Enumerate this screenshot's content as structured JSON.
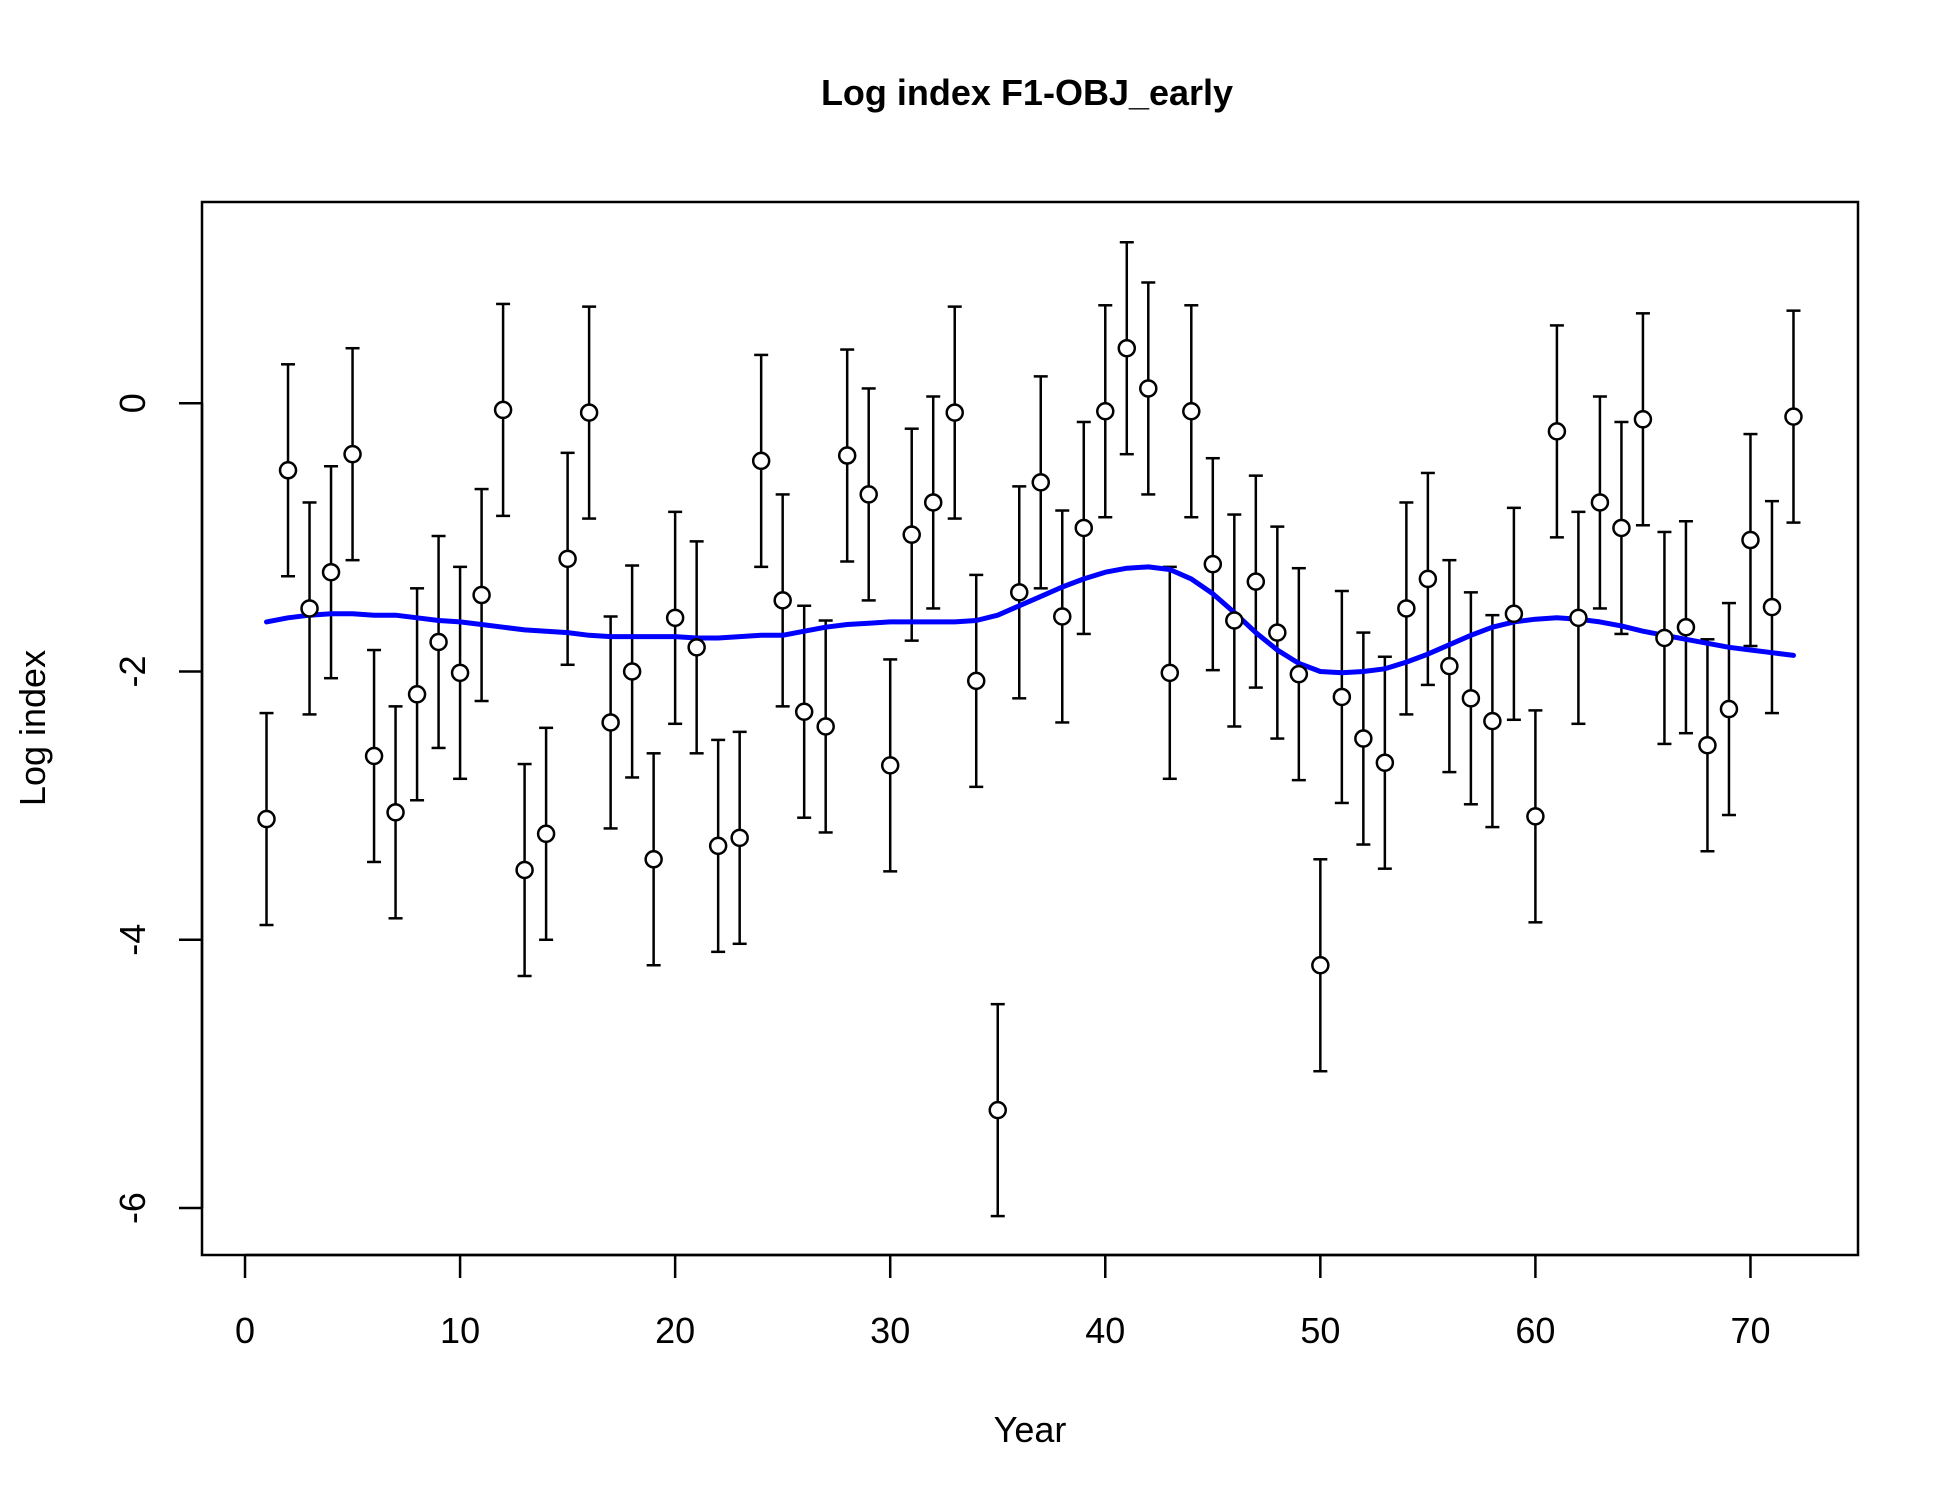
{
  "chart_data": {
    "type": "scatter",
    "title": "Log index F1-OBJ_early",
    "xlabel": "Year",
    "ylabel": "Log index",
    "xlim": [
      -2,
      75
    ],
    "ylim": [
      -6.35,
      1.5
    ],
    "xticks": [
      0,
      10,
      20,
      30,
      40,
      50,
      60,
      70
    ],
    "yticks": [
      -6,
      -4,
      -2,
      0
    ],
    "grid": false,
    "legend": "none",
    "error_halfwidth": 0.79,
    "colors": {
      "points": "#000000",
      "fit_line": "#0000ff"
    },
    "observed": {
      "x": [
        1,
        2,
        3,
        4,
        5,
        6,
        7,
        8,
        9,
        10,
        11,
        12,
        13,
        14,
        15,
        16,
        17,
        18,
        19,
        20,
        21,
        22,
        23,
        24,
        25,
        26,
        27,
        28,
        29,
        30,
        31,
        32,
        33,
        34,
        35,
        36,
        37,
        38,
        39,
        40,
        41,
        42,
        43,
        44,
        45,
        46,
        47,
        48,
        49,
        50,
        51,
        52,
        53,
        54,
        55,
        56,
        57,
        58,
        59,
        60,
        61,
        62,
        63,
        64,
        65,
        66,
        67,
        68,
        69,
        70,
        71,
        72
      ],
      "y": [
        -3.1,
        -0.5,
        -1.53,
        -1.26,
        -0.38,
        -2.63,
        -3.05,
        -2.17,
        -1.78,
        -2.01,
        -1.43,
        -0.05,
        -3.48,
        -3.21,
        -1.16,
        -0.07,
        -2.38,
        -2.0,
        -3.4,
        -1.6,
        -1.82,
        -3.3,
        -3.24,
        -0.43,
        -1.47,
        -2.3,
        -2.41,
        -0.39,
        -0.68,
        -2.7,
        -0.98,
        -0.74,
        -0.07,
        -2.07,
        -5.27,
        -1.41,
        -0.59,
        -1.59,
        -0.93,
        -0.06,
        0.41,
        0.11,
        -2.01,
        -0.06,
        -1.2,
        -1.62,
        -1.33,
        -1.71,
        -2.02,
        -4.19,
        -2.19,
        -2.5,
        -2.68,
        -1.53,
        -1.31,
        -1.96,
        -2.2,
        -2.37,
        -1.57,
        -3.08,
        -0.21,
        -1.6,
        -0.74,
        -0.93,
        -0.12,
        -1.75,
        -1.67,
        -2.55,
        -2.28,
        -1.02,
        -1.52,
        -0.1
      ]
    },
    "fitted": {
      "x": [
        1,
        2,
        3,
        4,
        5,
        6,
        7,
        8,
        9,
        10,
        11,
        12,
        13,
        14,
        15,
        16,
        17,
        18,
        19,
        20,
        21,
        22,
        23,
        24,
        25,
        26,
        27,
        28,
        29,
        30,
        31,
        32,
        33,
        34,
        35,
        36,
        37,
        38,
        39,
        40,
        41,
        42,
        43,
        44,
        45,
        46,
        47,
        48,
        49,
        50,
        51,
        52,
        53,
        54,
        55,
        56,
        57,
        58,
        59,
        60,
        61,
        62,
        63,
        64,
        65,
        66,
        67,
        68,
        69,
        70,
        71,
        72
      ],
      "y": [
        -1.63,
        -1.6,
        -1.58,
        -1.57,
        -1.57,
        -1.58,
        -1.58,
        -1.6,
        -1.62,
        -1.63,
        -1.65,
        -1.67,
        -1.69,
        -1.7,
        -1.71,
        -1.73,
        -1.74,
        -1.74,
        -1.74,
        -1.74,
        -1.75,
        -1.75,
        -1.74,
        -1.73,
        -1.73,
        -1.7,
        -1.67,
        -1.65,
        -1.64,
        -1.63,
        -1.63,
        -1.63,
        -1.63,
        -1.62,
        -1.58,
        -1.51,
        -1.44,
        -1.37,
        -1.31,
        -1.26,
        -1.23,
        -1.22,
        -1.24,
        -1.31,
        -1.42,
        -1.56,
        -1.71,
        -1.84,
        -1.94,
        -2.0,
        -2.01,
        -2.0,
        -1.98,
        -1.93,
        -1.87,
        -1.8,
        -1.73,
        -1.67,
        -1.63,
        -1.61,
        -1.6,
        -1.61,
        -1.63,
        -1.66,
        -1.7,
        -1.73,
        -1.76,
        -1.79,
        -1.82,
        -1.84,
        -1.86,
        -1.88
      ]
    }
  }
}
